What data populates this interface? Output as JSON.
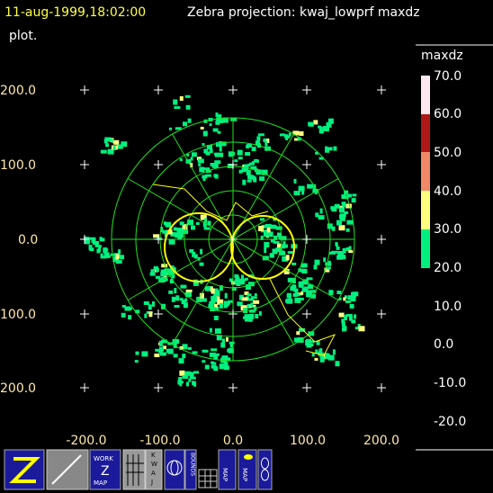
{
  "header": {
    "timestamp": "11-aug-1999,18:02:00",
    "title": "Zebra projection: kwaj_lowprf maxdz",
    "title_cont": "plot."
  },
  "plot": {
    "y_labels": [
      "200.0",
      "100.0",
      "0.0",
      "100.0",
      "200.0"
    ],
    "x_labels": [
      "-200.0",
      "-100.0",
      "0.0",
      "100.0",
      "200.0"
    ]
  },
  "colorbar": {
    "title": "maxdz",
    "labels": [
      "70.0",
      "60.0",
      "50.0",
      "40.0",
      "30.0",
      "20.0",
      "10.0",
      "0.0",
      "-10.0",
      "-20.0"
    ]
  },
  "toolbar": {
    "work_map": [
      "WORK",
      "Z",
      "MAP"
    ],
    "kwaj": [
      "K",
      "W",
      "A",
      "J"
    ],
    "bounds": "BOUNDS",
    "map1": "MAP",
    "map2": "MAP"
  }
}
